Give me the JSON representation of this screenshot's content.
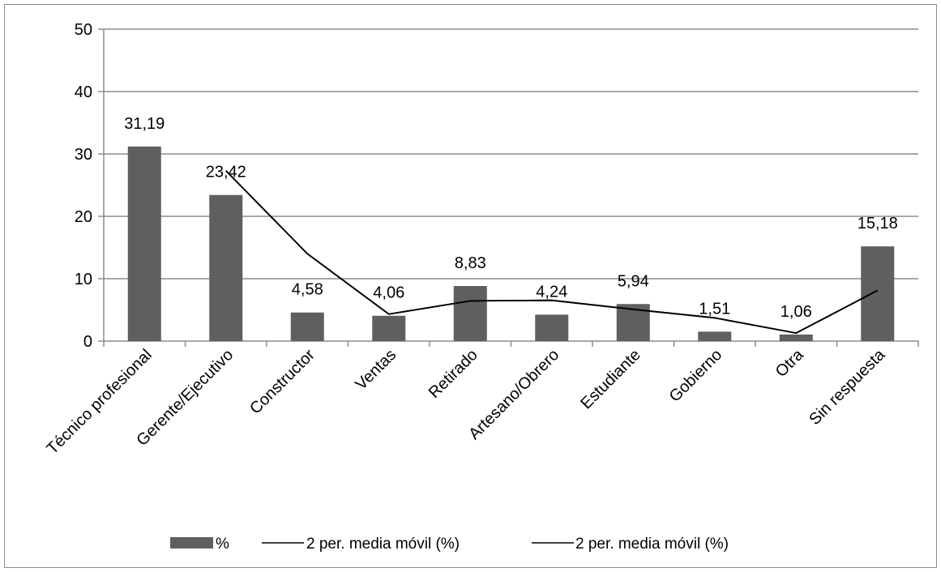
{
  "chart_data": {
    "type": "bar",
    "categories": [
      "Técnico profesional",
      "Gerente/Ejecutivo",
      "Constructor",
      "Ventas",
      "Retirado",
      "Artesano/Obrero",
      "Estudiante",
      "Gobierno",
      "Otra",
      "Sin respuesta"
    ],
    "series": [
      {
        "name": "%",
        "type": "bar",
        "values": [
          31.19,
          23.42,
          4.58,
          4.06,
          8.83,
          4.24,
          5.94,
          1.51,
          1.06,
          15.18
        ]
      },
      {
        "name": "2 per. media móvil (%)",
        "type": "line",
        "values": [
          null,
          27.305,
          14.0,
          4.32,
          6.445,
          6.535,
          5.09,
          3.725,
          1.285,
          8.12
        ]
      },
      {
        "name": "2 per. media móvil (%)",
        "type": "line",
        "values": [
          null,
          27.305,
          14.0,
          4.32,
          6.445,
          6.535,
          5.09,
          3.725,
          1.285,
          8.12
        ]
      }
    ],
    "data_labels": [
      "31,19",
      "23,42",
      "4,58",
      "4,06",
      "8,83",
      "4,24",
      "5,94",
      "1,51",
      "1,06",
      "15,18"
    ],
    "yticks": [
      "0",
      "10",
      "20",
      "30",
      "40",
      "50"
    ],
    "ylim": [
      0,
      50
    ],
    "grid": true,
    "legend_position": "bottom",
    "colors": {
      "bar": "#5f5f5f",
      "line": "#000000",
      "grid": "#8c8c8c",
      "axis": "#8c8c8c"
    }
  }
}
